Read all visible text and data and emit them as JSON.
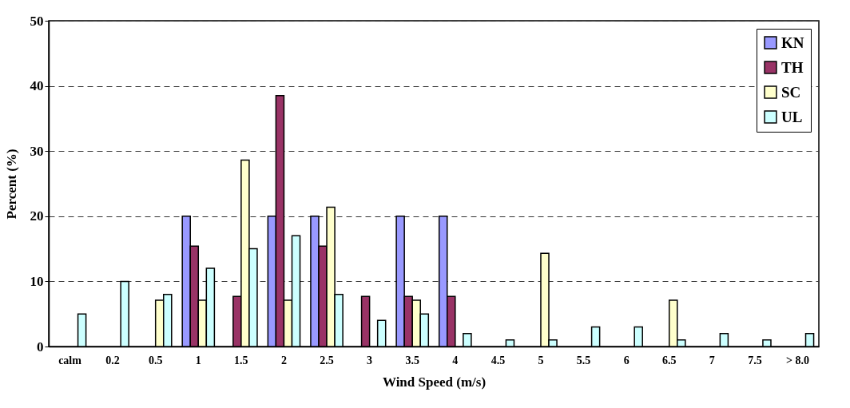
{
  "chart_data": {
    "type": "bar",
    "xlabel": "Wind Speed (m/s)",
    "ylabel": "Percent (%)",
    "categories": [
      "calm",
      "0.2",
      "0.5",
      "1",
      "1.5",
      "2",
      "2.5",
      "3",
      "3.5",
      "4",
      "4.5",
      "5",
      "5.5",
      "6",
      "6.5",
      "7",
      "7.5",
      "> 8.0"
    ],
    "series": [
      {
        "name": "KN",
        "color": "#9999ff",
        "values": [
          null,
          null,
          null,
          20,
          null,
          20,
          20,
          null,
          20,
          20,
          null,
          null,
          null,
          null,
          null,
          null,
          null,
          null
        ]
      },
      {
        "name": "TH",
        "color": "#993366",
        "values": [
          null,
          null,
          null,
          15.4,
          7.7,
          38.5,
          15.4,
          7.7,
          7.7,
          7.7,
          null,
          null,
          null,
          null,
          null,
          null,
          null,
          null
        ]
      },
      {
        "name": "SC",
        "color": "#ffffcc",
        "values": [
          null,
          null,
          7.1,
          7.1,
          28.6,
          7.1,
          21.4,
          null,
          7.1,
          null,
          null,
          14.3,
          null,
          null,
          7.1,
          null,
          null,
          null
        ]
      },
      {
        "name": "UL",
        "color": "#ccffff",
        "values": [
          5,
          10,
          8,
          12,
          15,
          17,
          8,
          4,
          5,
          2,
          1,
          1,
          3,
          3,
          1,
          2,
          1,
          2
        ]
      }
    ],
    "ylim": [
      0,
      50
    ],
    "yticks": [
      0,
      10,
      20,
      30,
      40,
      50
    ],
    "grid": "y",
    "legend": "top right"
  }
}
